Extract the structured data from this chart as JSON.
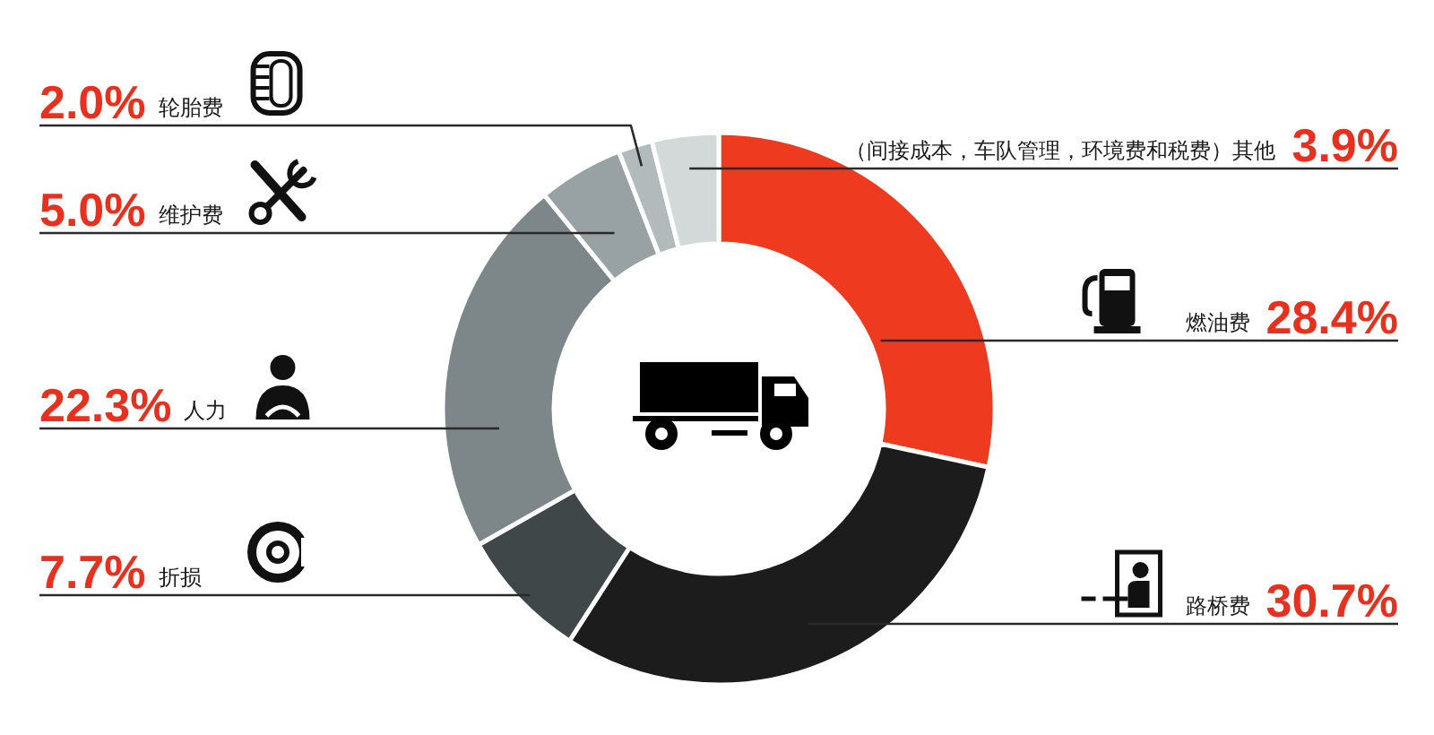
{
  "chart_data": {
    "type": "donut",
    "categories": [
      "燃油费",
      "路桥费",
      "折损",
      "人力",
      "维护费",
      "轮胎费",
      "（间接成本，车队管理，环境费和税费）其他"
    ],
    "values": [
      28.4,
      30.7,
      7.7,
      22.3,
      5.0,
      2.0,
      3.9
    ],
    "value_labels": [
      "28.4%",
      "30.7%",
      "7.7%",
      "22.3%",
      "5.0%",
      "2.0%",
      "3.9%"
    ],
    "colors": [
      "#ee3b1f",
      "#1c1c1c",
      "#3f4749",
      "#7d8789",
      "#98a1a3",
      "#b3babb",
      "#d3d8d9"
    ]
  }
}
